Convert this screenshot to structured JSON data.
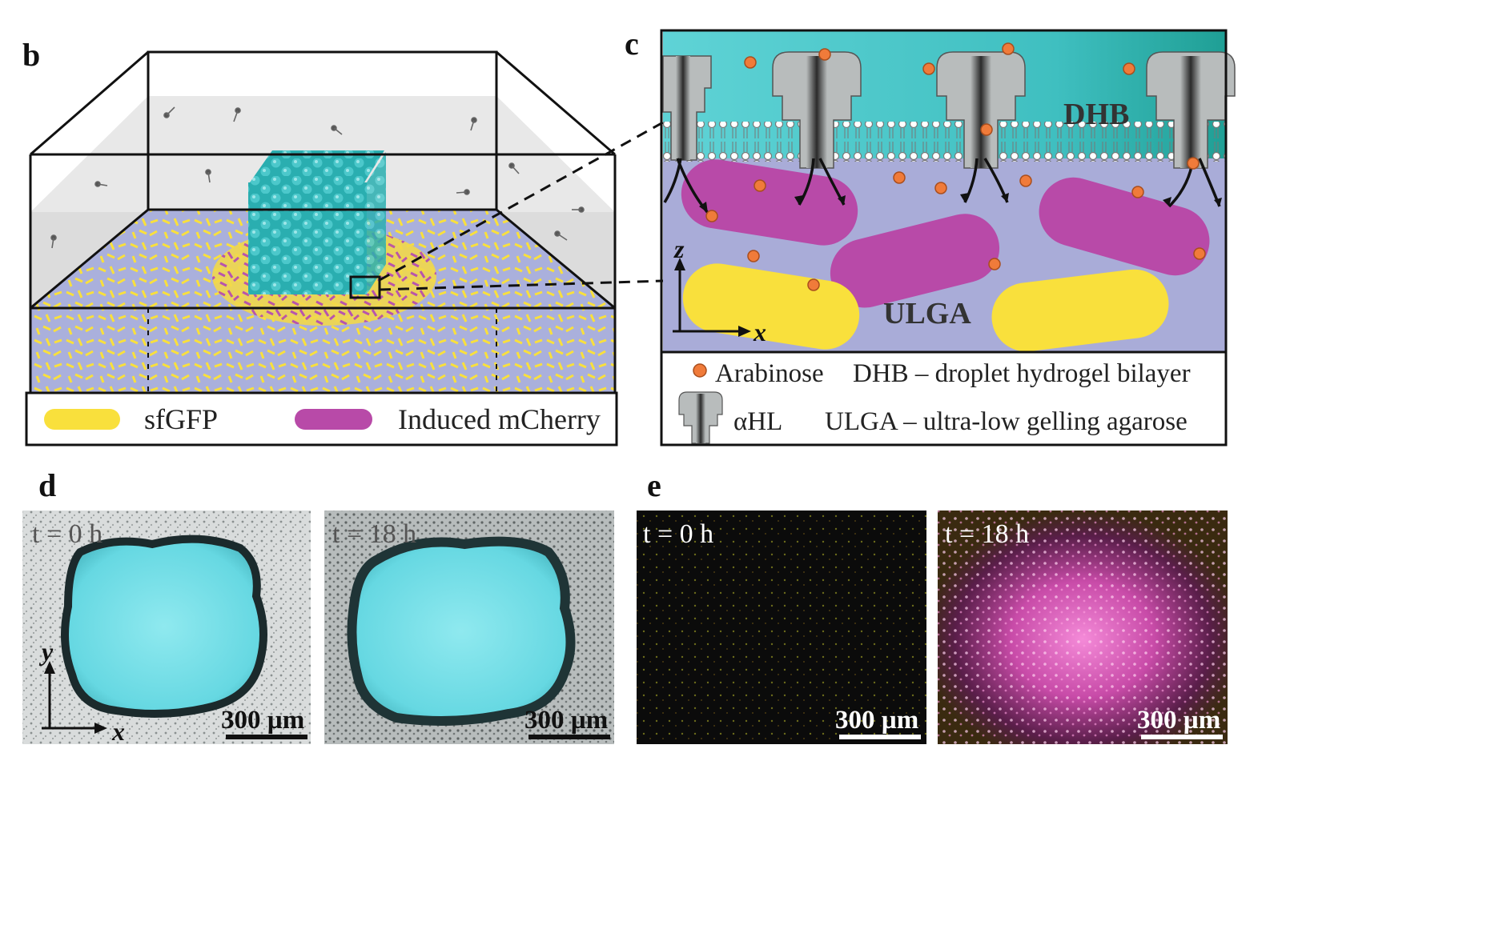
{
  "panels": {
    "b": {
      "letter": "b",
      "legend": [
        {
          "label": "sfGFP",
          "color": "#f9e03c"
        },
        {
          "label": "Induced mCherry",
          "color": "#b84aa8"
        }
      ]
    },
    "c": {
      "letter": "c",
      "labels": {
        "top": "DHB",
        "bottom": "ULGA"
      },
      "axes": {
        "vertical": "z",
        "horizontal": "x"
      },
      "legend": {
        "arabinose": "Arabinose",
        "dhb_def": "DHB – droplet hydrogel bilayer",
        "ahl": "αHL",
        "ulga_def": "ULGA – ultra-low gelling agarose"
      }
    },
    "d": {
      "letter": "d",
      "images": [
        {
          "time": "t = 0 h",
          "scale": "300 µm"
        },
        {
          "time": "t = 18 h",
          "scale": "300 µm"
        }
      ],
      "axes": {
        "vertical": "y",
        "horizontal": "x"
      }
    },
    "e": {
      "letter": "e",
      "images": [
        {
          "time": "t = 0 h",
          "scale": "300 µm"
        },
        {
          "time": "t = 18 h",
          "scale": "300 µm"
        }
      ]
    }
  },
  "colors": {
    "teal": "#3fc2c6",
    "yellow": "#f9e03c",
    "magenta": "#b84aa8",
    "gel": "#a9acd8",
    "arabinose": "#f07b3a"
  }
}
